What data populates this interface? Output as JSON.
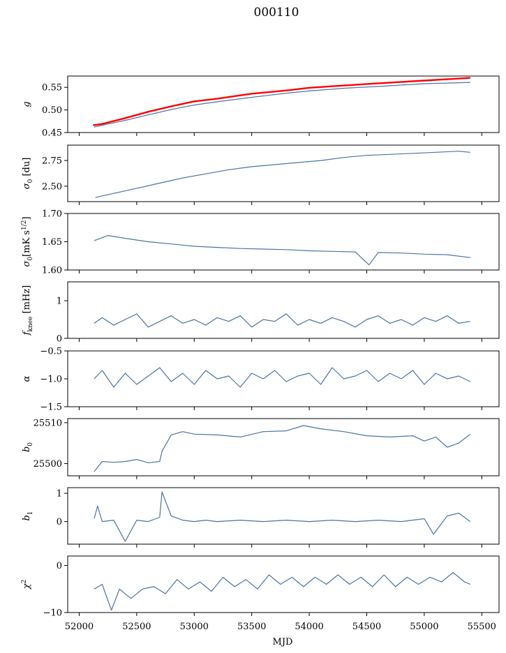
{
  "figure_title": "000110",
  "xlabel": "MJD",
  "x_ticks": [
    52000,
    52500,
    53000,
    53500,
    54000,
    54500,
    55000,
    55500
  ],
  "colors": {
    "series": "#4c72a4",
    "highlight": "#ff0000",
    "frame": "#000000"
  },
  "panel_labels": {
    "g": "g",
    "sigma0_du": "σ0 [du]",
    "sigma0_mk": "σ0[mK s1/2]",
    "fknee": "fknee [mHz]",
    "alpha": "α",
    "b0": "b0",
    "b1": "b1",
    "chi2": "χ2"
  },
  "chart_data": [
    {
      "type": "line",
      "key": "g",
      "ylabel": "g",
      "ylim": [
        0.45,
        0.575
      ],
      "yticks": [
        0.45,
        0.5,
        0.55
      ],
      "yticklabels": [
        "0.45",
        "0.50",
        "0.55"
      ],
      "xlim": [
        51900,
        55650
      ],
      "series": [
        {
          "color": "#ff0000",
          "x": [
            52120,
            52200,
            52400,
            52600,
            52800,
            53000,
            53200,
            53500,
            53800,
            54000,
            54300,
            54600,
            55000,
            55400
          ],
          "y": [
            0.466,
            0.469,
            0.482,
            0.496,
            0.508,
            0.519,
            0.525,
            0.536,
            0.543,
            0.549,
            0.554,
            0.559,
            0.565,
            0.571
          ]
        },
        {
          "color": "#4c72a4",
          "x": [
            52130,
            52200,
            52400,
            52600,
            52800,
            53000,
            53200,
            53500,
            53800,
            54000,
            54300,
            54600,
            55000,
            55400
          ],
          "y": [
            0.462,
            0.466,
            0.477,
            0.489,
            0.501,
            0.511,
            0.518,
            0.528,
            0.537,
            0.542,
            0.548,
            0.552,
            0.558,
            0.561
          ]
        }
      ]
    },
    {
      "type": "line",
      "key": "sigma0_du",
      "ylabel": "σ0 [du]",
      "ylim": [
        2.35,
        2.9
      ],
      "yticks": [
        2.5,
        2.75
      ],
      "yticklabels": [
        "2.50",
        "2.75"
      ],
      "xlim": [
        51900,
        55650
      ],
      "series": [
        {
          "color": "#4c72a4",
          "x": [
            52140,
            52300,
            52500,
            52700,
            52900,
            53100,
            53300,
            53500,
            53700,
            53900,
            54100,
            54300,
            54500,
            54700,
            54900,
            55100,
            55300,
            55400
          ],
          "y": [
            2.39,
            2.43,
            2.48,
            2.53,
            2.58,
            2.62,
            2.66,
            2.69,
            2.71,
            2.73,
            2.75,
            2.78,
            2.8,
            2.81,
            2.82,
            2.83,
            2.84,
            2.83
          ]
        }
      ]
    },
    {
      "type": "line",
      "key": "sigma0_mk",
      "ylabel": "σ0[mK s1/2]",
      "ylim": [
        1.6,
        1.7
      ],
      "yticks": [
        1.6,
        1.65,
        1.7
      ],
      "yticklabels": [
        "1.60",
        "1.65",
        "1.70"
      ],
      "xlim": [
        51900,
        55650
      ],
      "series": [
        {
          "color": "#4c72a4",
          "x": [
            52130,
            52250,
            52400,
            52600,
            52800,
            53000,
            53200,
            53400,
            53600,
            53800,
            54000,
            54200,
            54400,
            54520,
            54600,
            54800,
            55000,
            55200,
            55400
          ],
          "y": [
            1.652,
            1.661,
            1.656,
            1.65,
            1.646,
            1.642,
            1.64,
            1.638,
            1.637,
            1.636,
            1.634,
            1.633,
            1.632,
            1.609,
            1.631,
            1.63,
            1.628,
            1.627,
            1.622
          ]
        }
      ]
    },
    {
      "type": "line",
      "key": "fknee",
      "ylabel": "fknee [mHz]",
      "ylim": [
        0,
        1.5
      ],
      "yticks": [
        0,
        1
      ],
      "yticklabels": [
        "0",
        "1"
      ],
      "xlim": [
        51900,
        55650
      ],
      "series": [
        {
          "color": "#4c72a4",
          "x": [
            52130,
            52200,
            52300,
            52400,
            52500,
            52600,
            52700,
            52800,
            52900,
            53000,
            53100,
            53200,
            53300,
            53400,
            53500,
            53600,
            53700,
            53800,
            53900,
            54000,
            54100,
            54200,
            54300,
            54400,
            54500,
            54600,
            54700,
            54800,
            54900,
            55000,
            55100,
            55200,
            55300,
            55400
          ],
          "y": [
            0.4,
            0.55,
            0.35,
            0.5,
            0.65,
            0.3,
            0.45,
            0.6,
            0.4,
            0.5,
            0.35,
            0.55,
            0.45,
            0.6,
            0.3,
            0.5,
            0.45,
            0.65,
            0.35,
            0.5,
            0.4,
            0.55,
            0.45,
            0.3,
            0.5,
            0.6,
            0.4,
            0.5,
            0.35,
            0.55,
            0.45,
            0.6,
            0.4,
            0.45
          ]
        }
      ]
    },
    {
      "type": "line",
      "key": "alpha",
      "ylabel": "α",
      "ylim": [
        -1.5,
        -0.5
      ],
      "yticks": [
        -1.5,
        -1,
        -0.5
      ],
      "yticklabels": [
        "−1.5",
        "−1.0",
        "−0.5"
      ],
      "xlim": [
        51900,
        55650
      ],
      "series": [
        {
          "color": "#4c72a4",
          "x": [
            52130,
            52200,
            52300,
            52400,
            52500,
            52600,
            52700,
            52800,
            52900,
            53000,
            53100,
            53200,
            53300,
            53400,
            53500,
            53600,
            53700,
            53800,
            53900,
            54000,
            54100,
            54200,
            54300,
            54400,
            54500,
            54600,
            54700,
            54800,
            54900,
            55000,
            55100,
            55200,
            55300,
            55400
          ],
          "y": [
            -1.0,
            -0.85,
            -1.15,
            -0.9,
            -1.1,
            -0.95,
            -0.8,
            -1.05,
            -0.9,
            -1.1,
            -0.85,
            -1.0,
            -0.95,
            -1.15,
            -0.9,
            -1.0,
            -0.85,
            -1.05,
            -0.95,
            -0.9,
            -1.1,
            -0.8,
            -1.0,
            -0.95,
            -0.85,
            -1.05,
            -0.9,
            -1.0,
            -0.85,
            -1.1,
            -0.9,
            -1.0,
            -0.95,
            -1.05
          ]
        }
      ]
    },
    {
      "type": "line",
      "key": "b0",
      "ylabel": "b0",
      "ylim": [
        25497,
        25511
      ],
      "yticks": [
        25500,
        25510
      ],
      "yticklabels": [
        "25500",
        "25510"
      ],
      "xlim": [
        51900,
        55650
      ],
      "series": [
        {
          "color": "#4c72a4",
          "x": [
            52130,
            52200,
            52300,
            52400,
            52500,
            52600,
            52700,
            52720,
            52800,
            52900,
            53000,
            53200,
            53400,
            53600,
            53800,
            53950,
            54100,
            54300,
            54500,
            54700,
            54900,
            55000,
            55100,
            55200,
            55300,
            55400
          ],
          "y": [
            25498,
            25500.5,
            25500.3,
            25500.5,
            25501,
            25500.2,
            25500.5,
            25503,
            25507,
            25507.8,
            25507.2,
            25507,
            25506.5,
            25507.8,
            25508,
            25509.3,
            25508.5,
            25507.8,
            25506.8,
            25506.5,
            25506.8,
            25505.5,
            25506.5,
            25504,
            25505,
            25507.2
          ]
        }
      ]
    },
    {
      "type": "line",
      "key": "b1",
      "ylabel": "b1",
      "ylim": [
        -0.8,
        1.2
      ],
      "yticks": [
        0,
        1
      ],
      "yticklabels": [
        "0",
        "1"
      ],
      "xlim": [
        51900,
        55650
      ],
      "series": [
        {
          "color": "#4c72a4",
          "x": [
            52130,
            52160,
            52200,
            52300,
            52400,
            52500,
            52600,
            52700,
            52720,
            52800,
            52900,
            53000,
            53100,
            53200,
            53400,
            53600,
            53800,
            54000,
            54200,
            54400,
            54600,
            54800,
            55000,
            55080,
            55200,
            55300,
            55400
          ],
          "y": [
            0.1,
            0.55,
            0.0,
            0.05,
            -0.7,
            0.05,
            0.0,
            0.15,
            1.05,
            0.2,
            0.05,
            0.0,
            0.05,
            0.0,
            0.05,
            0.0,
            0.05,
            0.0,
            0.05,
            0.0,
            0.05,
            0.0,
            0.1,
            -0.45,
            0.2,
            0.3,
            0.0
          ]
        }
      ]
    },
    {
      "type": "line",
      "key": "chi2",
      "ylabel": "χ2",
      "ylim": [
        -10,
        2
      ],
      "yticks": [
        -10,
        0
      ],
      "yticklabels": [
        "−10",
        "0"
      ],
      "xlim": [
        51900,
        55650
      ],
      "series": [
        {
          "color": "#4c72a4",
          "x": [
            52130,
            52200,
            52280,
            52350,
            52450,
            52550,
            52650,
            52750,
            52850,
            52950,
            53050,
            53150,
            53250,
            53350,
            53450,
            53550,
            53650,
            53750,
            53850,
            53950,
            54050,
            54150,
            54250,
            54350,
            54450,
            54550,
            54650,
            54750,
            54850,
            54950,
            55050,
            55150,
            55250,
            55350,
            55400
          ],
          "y": [
            -5,
            -4,
            -9.5,
            -5,
            -7,
            -5,
            -4.5,
            -6,
            -3,
            -5,
            -3.5,
            -5.5,
            -2.5,
            -4.5,
            -3,
            -5,
            -2,
            -4,
            -2.5,
            -4.5,
            -2.5,
            -4,
            -2,
            -4,
            -2.5,
            -4.5,
            -2,
            -4.5,
            -2.5,
            -4,
            -2.5,
            -3.5,
            -1.5,
            -3.5,
            -4
          ]
        }
      ]
    }
  ]
}
